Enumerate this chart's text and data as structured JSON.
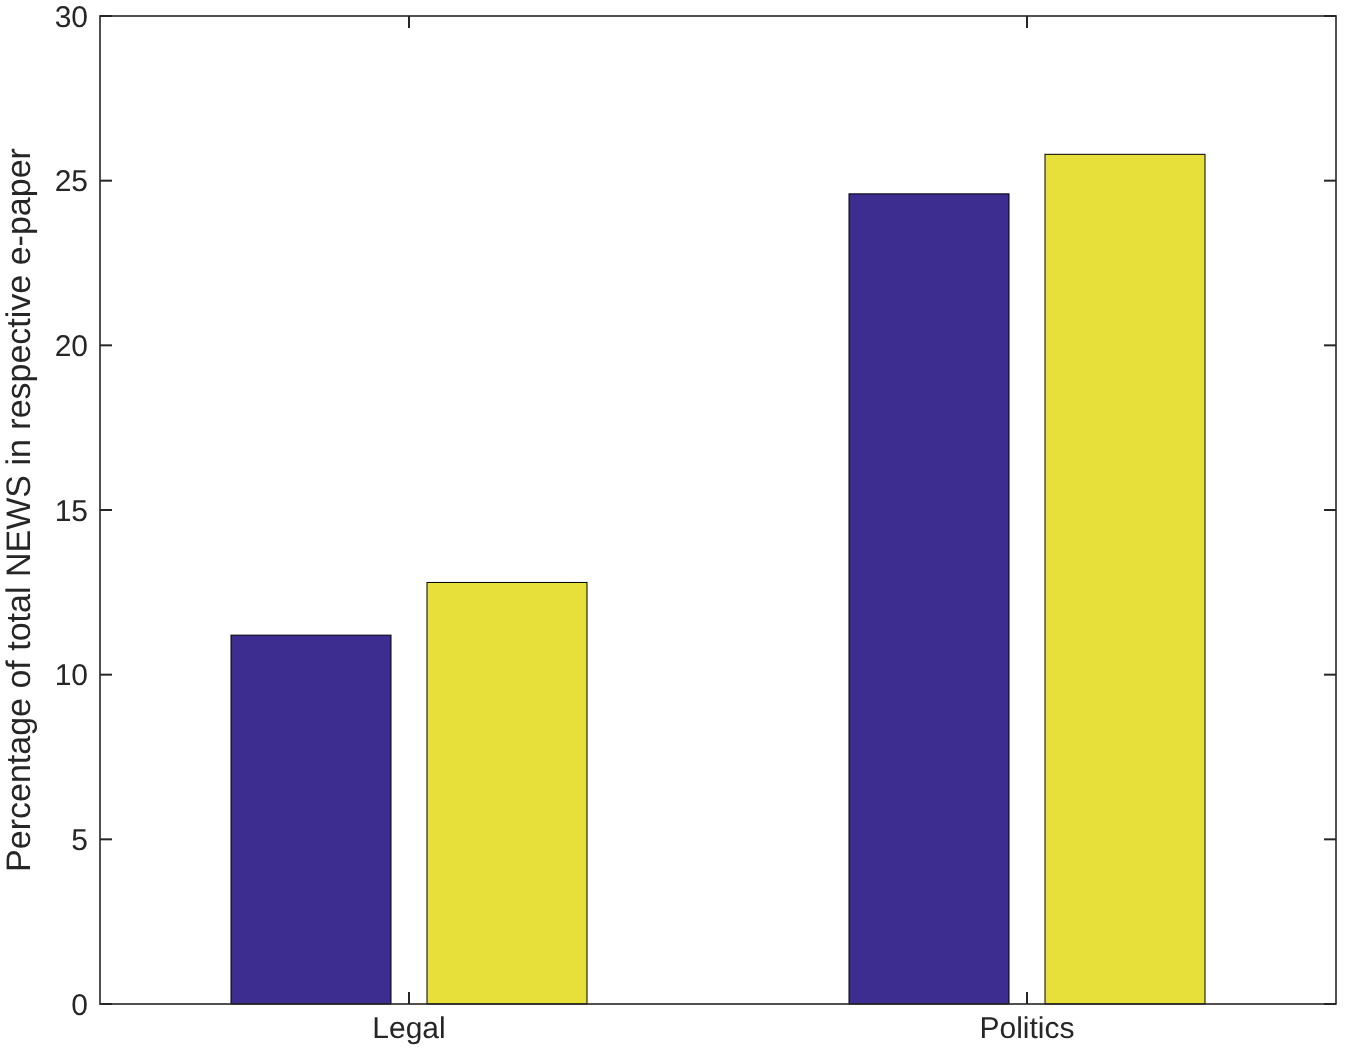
{
  "chart_data": {
    "type": "bar",
    "ylabel": "Percentage of total NEWS in respective e-paper",
    "categories": [
      "Legal",
      "Politics"
    ],
    "series": [
      {
        "color": "#3d2d91",
        "values": [
          11.2,
          24.6
        ]
      },
      {
        "color": "#e8e03a",
        "values": [
          12.8,
          25.8
        ]
      }
    ],
    "ylim": [
      0,
      30
    ],
    "yticks": [
      0,
      5,
      10,
      15,
      20,
      25,
      30
    ],
    "grid": false
  }
}
